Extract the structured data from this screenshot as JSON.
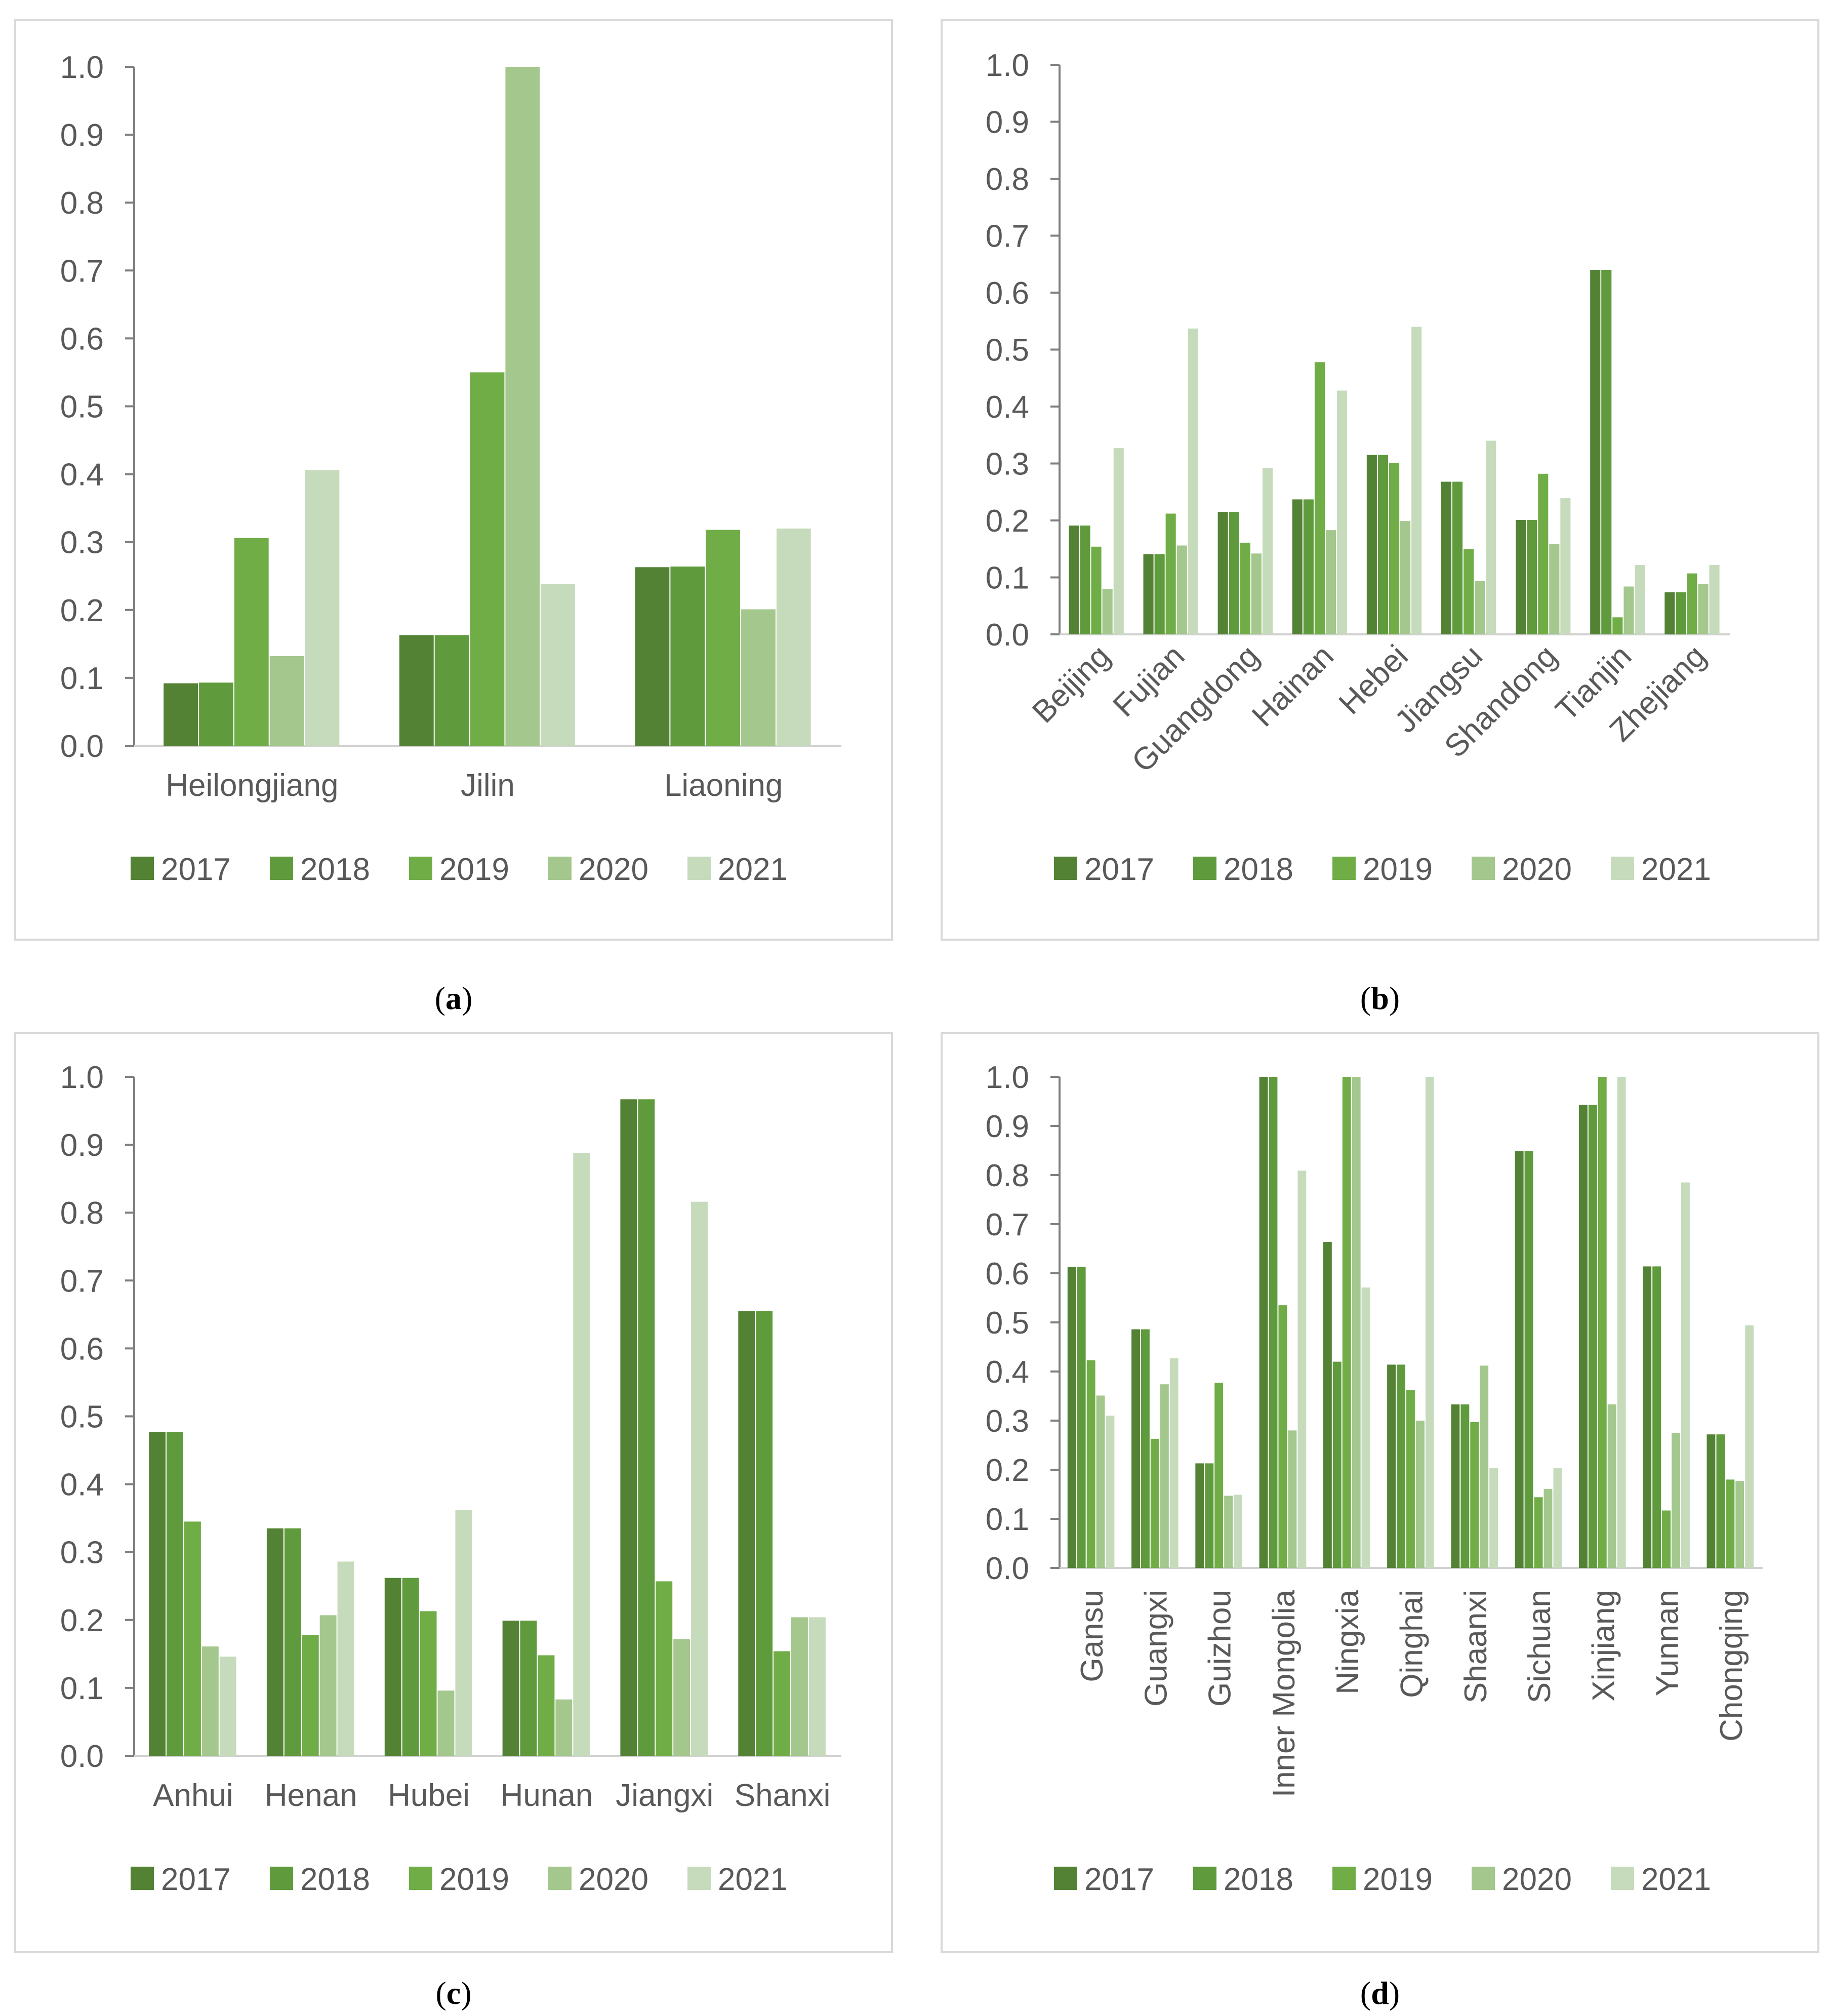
{
  "colors": [
    "#548235",
    "#5f9a3c",
    "#70ad47",
    "#a3c78c",
    "#c6dbbb"
  ],
  "legend": [
    "2017",
    "2018",
    "2019",
    "2020",
    "2021"
  ],
  "chart_data": [
    {
      "panel": "a",
      "type": "bar",
      "caption": "a",
      "categories": [
        "Heilongjiang",
        "Jilin",
        "Liaoning"
      ],
      "ylim": [
        0,
        1.0
      ],
      "yticks": [
        "0.0",
        "0.1",
        "0.2",
        "0.3",
        "0.4",
        "0.5",
        "0.6",
        "0.7",
        "0.8",
        "0.9",
        "1.0"
      ],
      "series": [
        {
          "name": "2017",
          "values": [
            0.092,
            0.163,
            0.263
          ]
        },
        {
          "name": "2018",
          "values": [
            0.093,
            0.163,
            0.264
          ]
        },
        {
          "name": "2019",
          "values": [
            0.306,
            0.55,
            0.318
          ]
        },
        {
          "name": "2020",
          "values": [
            0.132,
            1.0,
            0.201
          ]
        },
        {
          "name": "2021",
          "values": [
            0.406,
            0.238,
            0.32
          ]
        }
      ]
    },
    {
      "panel": "b",
      "type": "bar",
      "caption": "b",
      "categories": [
        "Beijing",
        "Fujian",
        "Guangdong",
        "Hainan",
        "Hebei",
        "Jiangsu",
        "Shandong",
        "Tianjin",
        "Zhejiang"
      ],
      "ylim": [
        0,
        1.0
      ],
      "yticks": [
        "0.0",
        "0.1",
        "0.2",
        "0.3",
        "0.4",
        "0.5",
        "0.6",
        "0.7",
        "0.8",
        "0.9",
        "1.0"
      ],
      "series": [
        {
          "name": "2017",
          "values": [
            0.191,
            0.141,
            0.215,
            0.237,
            0.315,
            0.268,
            0.201,
            0.64,
            0.074
          ]
        },
        {
          "name": "2018",
          "values": [
            0.191,
            0.141,
            0.215,
            0.237,
            0.315,
            0.268,
            0.201,
            0.64,
            0.074
          ]
        },
        {
          "name": "2019",
          "values": [
            0.154,
            0.212,
            0.161,
            0.478,
            0.301,
            0.15,
            0.282,
            0.03,
            0.107
          ]
        },
        {
          "name": "2020",
          "values": [
            0.08,
            0.156,
            0.142,
            0.183,
            0.199,
            0.094,
            0.159,
            0.084,
            0.088
          ]
        },
        {
          "name": "2021",
          "values": [
            0.327,
            0.537,
            0.292,
            0.428,
            0.54,
            0.34,
            0.239,
            0.122,
            0.122
          ]
        }
      ]
    },
    {
      "panel": "c",
      "type": "bar",
      "caption": "c",
      "categories": [
        "Anhui",
        "Henan",
        "Hubei",
        "Hunan",
        "Jiangxi",
        "Shanxi"
      ],
      "ylim": [
        0,
        1.0
      ],
      "yticks": [
        "0.0",
        "0.1",
        "0.2",
        "0.3",
        "0.4",
        "0.5",
        "0.6",
        "0.7",
        "0.8",
        "0.9",
        "1.0"
      ],
      "series": [
        {
          "name": "2017",
          "values": [
            0.477,
            0.335,
            0.262,
            0.199,
            0.967,
            0.655
          ]
        },
        {
          "name": "2018",
          "values": [
            0.477,
            0.335,
            0.262,
            0.199,
            0.967,
            0.655
          ]
        },
        {
          "name": "2019",
          "values": [
            0.345,
            0.178,
            0.213,
            0.148,
            0.257,
            0.154
          ]
        },
        {
          "name": "2020",
          "values": [
            0.161,
            0.207,
            0.096,
            0.083,
            0.172,
            0.204
          ]
        },
        {
          "name": "2021",
          "values": [
            0.146,
            0.286,
            0.362,
            0.888,
            0.816,
            0.204
          ]
        }
      ]
    },
    {
      "panel": "d",
      "type": "bar",
      "caption": "d",
      "categories": [
        "Gansu",
        "Guangxi",
        "Guizhou",
        "Inner Mongolia",
        "Ningxia",
        "Qinghai",
        "Shaanxi",
        "Sichuan",
        "Xinjiang",
        "Yunnan",
        "Chongqing"
      ],
      "ylim": [
        0,
        1.0
      ],
      "yticks": [
        "0.0",
        "0.1",
        "0.2",
        "0.3",
        "0.4",
        "0.5",
        "0.6",
        "0.7",
        "0.8",
        "0.9",
        "1.0"
      ],
      "series": [
        {
          "name": "2017",
          "values": [
            0.613,
            0.486,
            0.213,
            1.0,
            0.664,
            0.414,
            0.333,
            0.849,
            0.943,
            0.614,
            0.272
          ]
        },
        {
          "name": "2018",
          "values": [
            0.613,
            0.486,
            0.213,
            1.0,
            0.42,
            0.414,
            0.333,
            0.849,
            0.943,
            0.614,
            0.272
          ]
        },
        {
          "name": "2019",
          "values": [
            0.423,
            0.263,
            0.377,
            0.535,
            1.0,
            0.362,
            0.297,
            0.144,
            1.0,
            0.117,
            0.18
          ]
        },
        {
          "name": "2020",
          "values": [
            0.351,
            0.374,
            0.147,
            0.28,
            1.0,
            0.3,
            0.412,
            0.161,
            0.333,
            0.275,
            0.177
          ]
        },
        {
          "name": "2021",
          "values": [
            0.31,
            0.427,
            0.149,
            0.809,
            0.571,
            1.0,
            0.203,
            0.203,
            1.0,
            0.785,
            0.494
          ]
        }
      ]
    }
  ]
}
